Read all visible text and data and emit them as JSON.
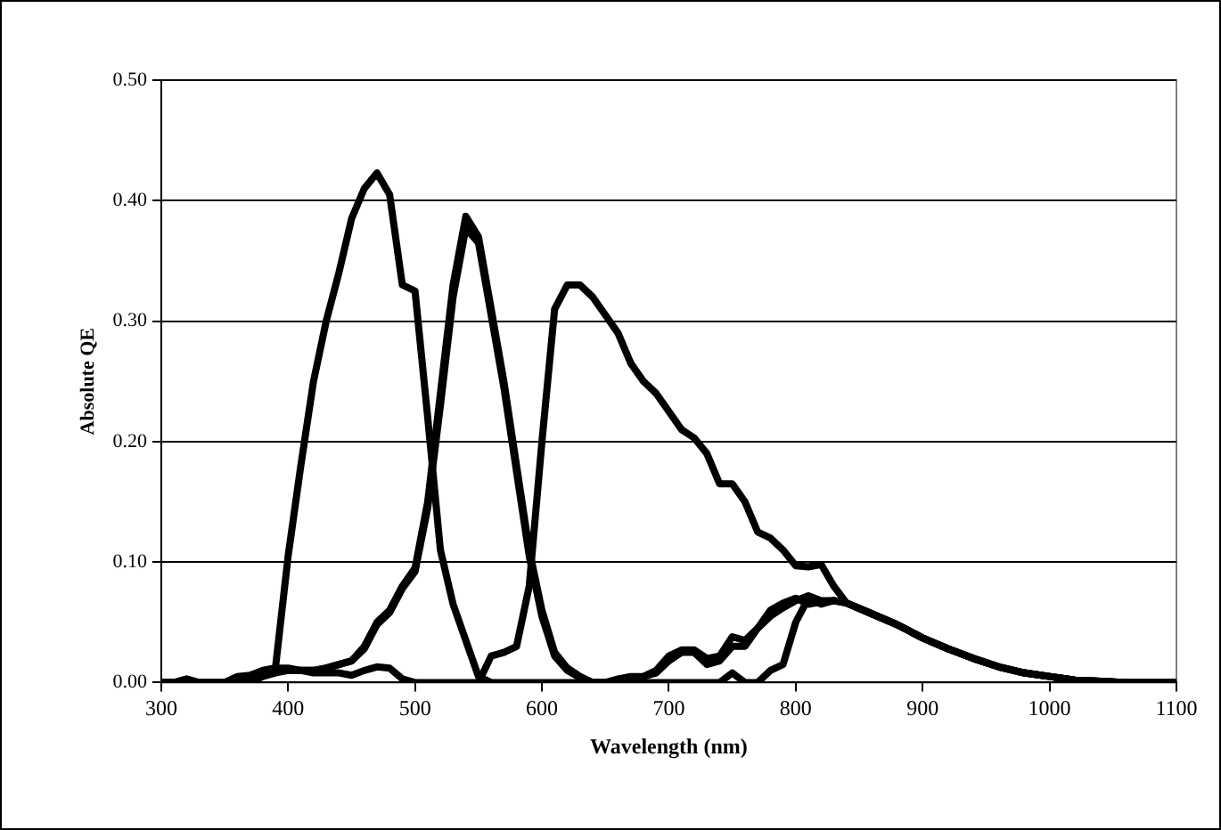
{
  "chart_data": {
    "type": "line",
    "xlabel": "Wavelength (nm)",
    "ylabel": "Absolute QE",
    "x": [
      300,
      310,
      320,
      330,
      340,
      350,
      360,
      370,
      380,
      390,
      400,
      410,
      420,
      430,
      440,
      450,
      460,
      470,
      480,
      490,
      500,
      510,
      520,
      530,
      540,
      550,
      560,
      570,
      580,
      590,
      600,
      610,
      620,
      630,
      640,
      650,
      660,
      670,
      680,
      690,
      700,
      710,
      720,
      730,
      740,
      750,
      760,
      770,
      780,
      790,
      800,
      810,
      820,
      830,
      840,
      860,
      880,
      900,
      920,
      940,
      960,
      980,
      1000,
      1020,
      1040,
      1060,
      1080,
      1100
    ],
    "series": [
      {
        "color": "#000000",
        "values": [
          0,
          0,
          0.003,
          0,
          0,
          0,
          0.005,
          0.006,
          0.01,
          0.012,
          0.105,
          0.18,
          0.25,
          0.3,
          0.34,
          0.385,
          0.41,
          0.423,
          0.405,
          0.33,
          0.325,
          0.22,
          0.11,
          0.065,
          0.035,
          0.005,
          0,
          0,
          0,
          0,
          0,
          0,
          0,
          0,
          0,
          0,
          0,
          0,
          0,
          0,
          0,
          0,
          0,
          0,
          0,
          0.008,
          0,
          0,
          0.01,
          0.015,
          0.05,
          0.07,
          0.065,
          0.068,
          0.066,
          0.057,
          0.048,
          0.037,
          0.028,
          0.02,
          0.013,
          0.008,
          0.005,
          0.002,
          0.001,
          0,
          0,
          0
        ]
      },
      {
        "color": "#000000",
        "values": [
          0,
          0,
          0,
          0,
          0,
          0,
          0,
          0.005,
          0.01,
          0.012,
          0.012,
          0.01,
          0.01,
          0.012,
          0.015,
          0.018,
          0.03,
          0.05,
          0.06,
          0.08,
          0.095,
          0.15,
          0.24,
          0.33,
          0.387,
          0.37,
          0.31,
          0.25,
          0.18,
          0.11,
          0.06,
          0.025,
          0.012,
          0.005,
          0,
          0,
          0.003,
          0.005,
          0.005,
          0.01,
          0.022,
          0.027,
          0.027,
          0.02,
          0.022,
          0.038,
          0.035,
          0.045,
          0.055,
          0.062,
          0.068,
          0.072,
          0.068,
          0.068,
          0.066,
          0.057,
          0.048,
          0.037,
          0.028,
          0.02,
          0.013,
          0.008,
          0.005,
          0.002,
          0.001,
          0,
          0,
          0
        ]
      },
      {
        "color": "#000000",
        "values": [
          0,
          0,
          0,
          0,
          0,
          0,
          0,
          0.005,
          0.008,
          0.01,
          0.01,
          0.01,
          0.01,
          0.012,
          0.015,
          0.018,
          0.028,
          0.048,
          0.058,
          0.078,
          0.092,
          0.145,
          0.23,
          0.32,
          0.377,
          0.365,
          0.305,
          0.245,
          0.175,
          0.105,
          0.055,
          0.022,
          0.01,
          0.004,
          0,
          0,
          0.002,
          0.004,
          0.005,
          0.008,
          0.018,
          0.025,
          0.025,
          0.015,
          0.018,
          0.03,
          0.03,
          0.045,
          0.06,
          0.066,
          0.07,
          0.065,
          0.067,
          0.068,
          0.066,
          0.057,
          0.048,
          0.037,
          0.028,
          0.02,
          0.013,
          0.008,
          0.005,
          0.002,
          0.001,
          0,
          0,
          0
        ]
      },
      {
        "color": "#000000",
        "values": [
          0,
          0,
          0,
          0,
          0,
          0,
          0,
          0,
          0.005,
          0.008,
          0.01,
          0.01,
          0.008,
          0.008,
          0.008,
          0.006,
          0.01,
          0.013,
          0.012,
          0.003,
          0,
          0,
          0,
          0,
          0,
          0,
          0.022,
          0.025,
          0.03,
          0.08,
          0.2,
          0.31,
          0.33,
          0.33,
          0.32,
          0.305,
          0.29,
          0.265,
          0.25,
          0.24,
          0.225,
          0.21,
          0.203,
          0.19,
          0.165,
          0.165,
          0.15,
          0.125,
          0.12,
          0.11,
          0.097,
          0.096,
          0.098,
          0.08,
          0.066,
          0.057,
          0.048,
          0.037,
          0.028,
          0.02,
          0.013,
          0.008,
          0.005,
          0.002,
          0.001,
          0,
          0,
          0
        ]
      }
    ],
    "xlim": [
      300,
      1100
    ],
    "xticks": [
      300,
      400,
      500,
      600,
      700,
      800,
      900,
      1000,
      1100
    ],
    "ylim": [
      0,
      0.5
    ],
    "yticks": [
      {
        "value": 0,
        "label": "0.00"
      },
      {
        "value": 0.1,
        "label": "0.10"
      },
      {
        "value": 0.2,
        "label": "0.20"
      },
      {
        "value": 0.3,
        "label": "0.30"
      },
      {
        "value": 0.4,
        "label": "0.40"
      },
      {
        "value": 0.5,
        "label": "0.50"
      }
    ],
    "grid": "y",
    "legend": false,
    "marker": "none",
    "line_style": "solid"
  }
}
